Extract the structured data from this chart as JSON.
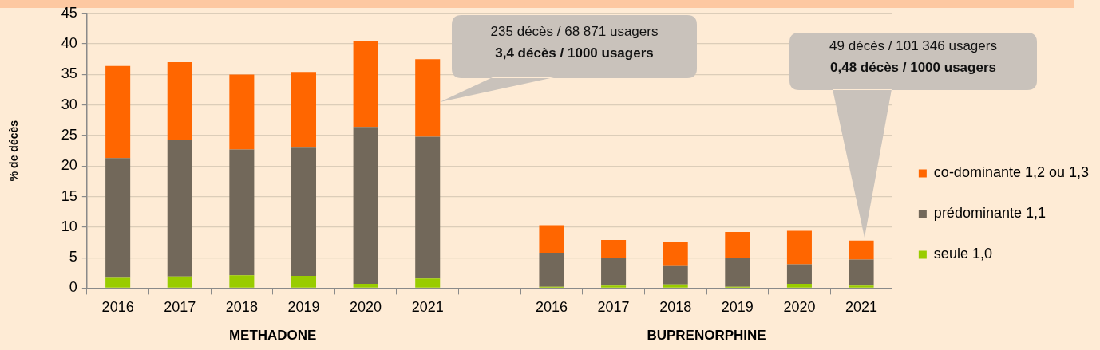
{
  "chart_data": {
    "type": "bar",
    "stacked": true,
    "ylabel": "% de décès",
    "categories": [
      "2016",
      "2017",
      "2018",
      "2019",
      "2020",
      "2021",
      null,
      "2016",
      "2017",
      "2018",
      "2019",
      "2020",
      "2021"
    ],
    "series": [
      {
        "name": "seule 1,0",
        "color": "#99cc00",
        "values": [
          1.7,
          1.9,
          2.1,
          2.0,
          0.7,
          1.6,
          null,
          0.2,
          0.4,
          0.6,
          0.2,
          0.7,
          0.4
        ]
      },
      {
        "name": "prédominante 1,1",
        "color": "#72685a",
        "values": [
          19.6,
          22.4,
          20.6,
          21.0,
          25.7,
          23.2,
          null,
          5.6,
          4.5,
          3.0,
          4.8,
          3.2,
          4.3
        ]
      },
      {
        "name": "co-dominante 1,2 ou 1,3",
        "color": "#ff6600",
        "values": [
          15.1,
          12.7,
          12.3,
          12.4,
          14.1,
          12.7,
          null,
          4.5,
          3.0,
          3.9,
          4.2,
          5.5,
          3.1
        ]
      }
    ],
    "ylim": [
      0,
      45
    ],
    "yticks": [
      0,
      5,
      10,
      15,
      20,
      25,
      30,
      35,
      40,
      45
    ],
    "grid": "y",
    "legend": "right",
    "annotations": [
      "METHADONE",
      "BUPRENORPHINE",
      "235 décès / 68 871 usagers",
      "3,4 décès / 1000 usagers",
      "49 décès / 101 346 usagers",
      "0,48 décès / 1000 usagers"
    ]
  }
}
